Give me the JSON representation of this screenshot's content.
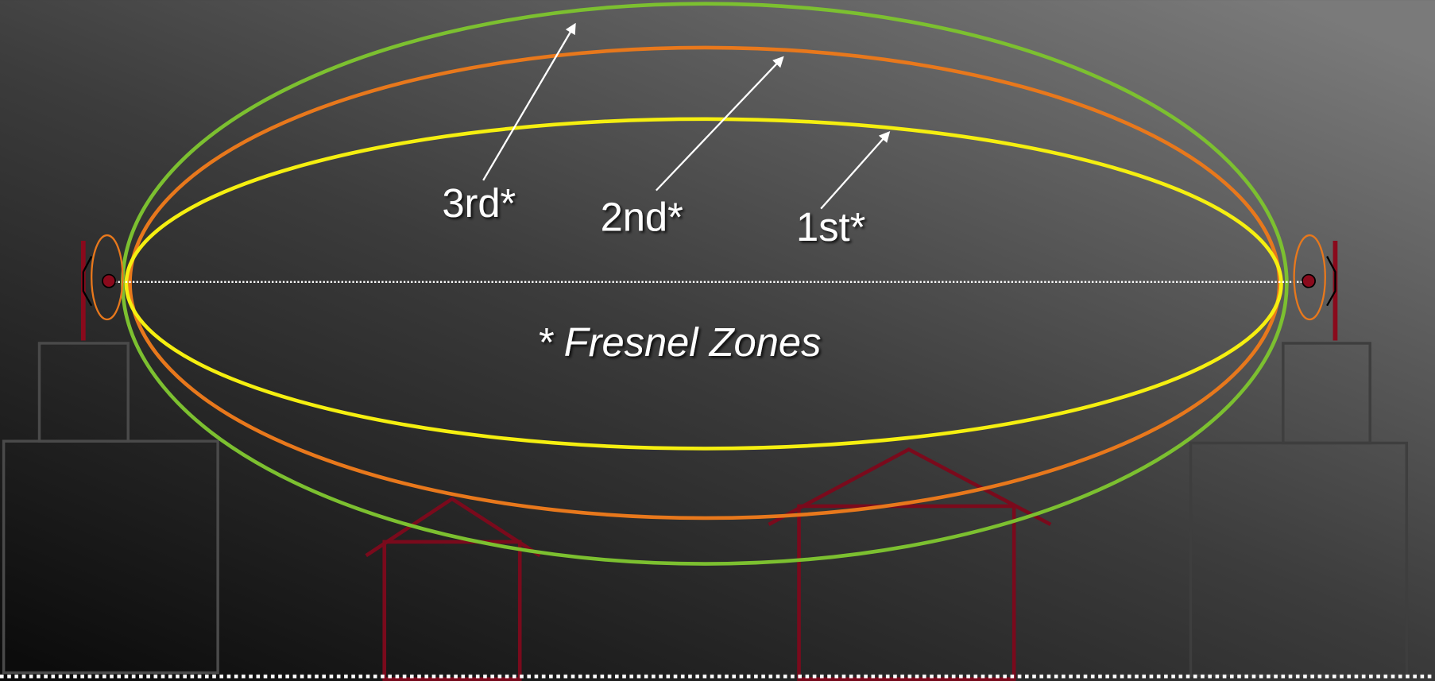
{
  "zones": [
    {
      "label": "3rd*"
    },
    {
      "label": "2nd*"
    },
    {
      "label": "1st*"
    }
  ],
  "caption": "* Fresnel Zones"
}
